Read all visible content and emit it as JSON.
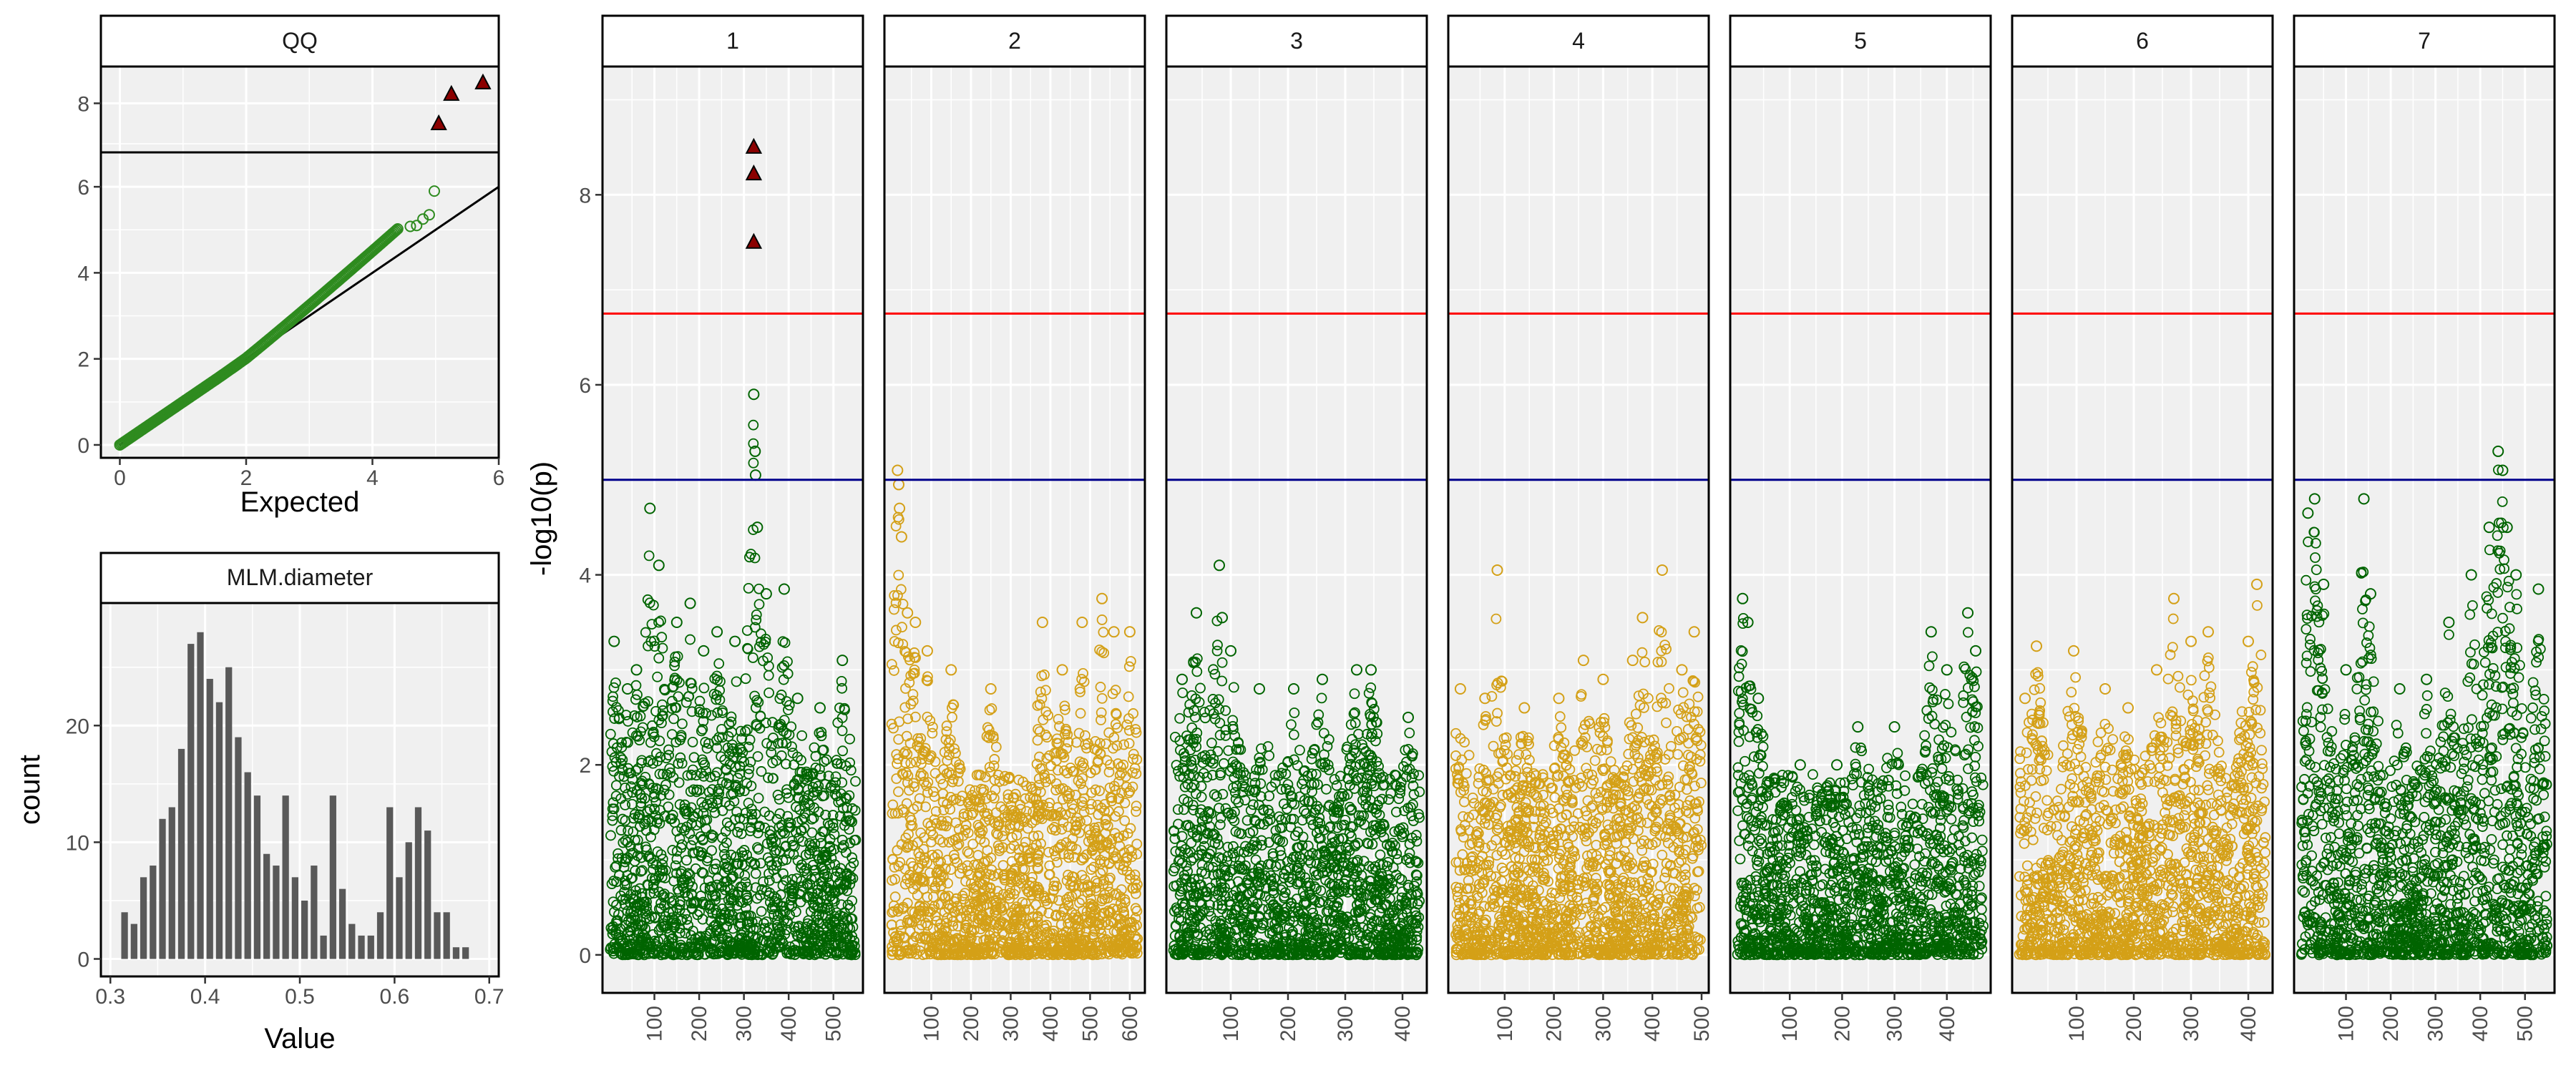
{
  "chart_data": [
    {
      "type": "scatter",
      "strip": "QQ",
      "xlabel": "Expected",
      "ylabel": "",
      "x_ticks": [
        0,
        2,
        4,
        6
      ],
      "upper_y_ticks": [
        8
      ],
      "lower_y_ticks": [
        0,
        2,
        4,
        6
      ],
      "upper_ylim": [
        6.8,
        8.9
      ],
      "lower_ylim": [
        -0.3,
        6.8
      ],
      "xlim": [
        -0.3,
        6.0
      ],
      "reference_line": [
        [
          0,
          0
        ],
        [
          6,
          6
        ]
      ],
      "significant_points": [
        [
          5.05,
          7.5
        ],
        [
          5.25,
          8.22
        ],
        [
          5.75,
          8.5
        ]
      ],
      "point_colors": {
        "significant": "#8b0000",
        "normal": "#2e8b1f"
      }
    },
    {
      "type": "bar",
      "strip": "MLM.diameter",
      "xlabel": "Value",
      "ylabel": "count",
      "x_ticks": [
        0.3,
        0.4,
        0.5,
        0.6,
        0.7
      ],
      "y_ticks": [
        0,
        10,
        20
      ],
      "xlim": [
        0.29,
        0.71
      ],
      "ylim": [
        -1.5,
        30.5
      ],
      "bin_width": 0.01,
      "bins": [
        0.315,
        0.325,
        0.335,
        0.345,
        0.355,
        0.365,
        0.375,
        0.385,
        0.395,
        0.405,
        0.415,
        0.425,
        0.435,
        0.445,
        0.455,
        0.465,
        0.475,
        0.485,
        0.495,
        0.505,
        0.515,
        0.525,
        0.535,
        0.545,
        0.555,
        0.565,
        0.575,
        0.585,
        0.595,
        0.605,
        0.615,
        0.625,
        0.635,
        0.645,
        0.655,
        0.665,
        0.675
      ],
      "values": [
        4,
        3,
        7,
        8,
        12,
        13,
        18,
        27,
        28,
        24,
        22,
        25,
        19,
        16,
        14,
        9,
        8,
        14,
        7,
        5,
        8,
        2,
        14,
        6,
        3,
        2,
        2,
        4,
        13,
        7,
        10,
        13,
        11,
        4,
        4,
        1,
        1
      ],
      "bar_color": "#595959"
    },
    {
      "type": "scatter",
      "ylabel": "-log10(p)",
      "y_ticks": [
        0,
        2,
        4,
        6,
        8
      ],
      "ylim": [
        -0.4,
        9.35
      ],
      "threshold_lines": [
        {
          "value": 6.75,
          "color": "#ff0000"
        },
        {
          "value": 5.0,
          "color": "#00008b"
        }
      ],
      "series_colors": {
        "odd": "#006400",
        "even": "#d4a017",
        "significant": "#8b0000"
      },
      "panels": [
        {
          "strip": "1",
          "xmax": 550,
          "x_ticks": [
            100,
            200,
            300,
            400,
            500
          ],
          "peaks": [
            [
              10,
              3.3
            ],
            [
              40,
              2.8
            ],
            [
              60,
              3.0
            ],
            [
              90,
              4.7
            ],
            [
              110,
              4.1
            ],
            [
              150,
              3.5
            ],
            [
              180,
              3.7
            ],
            [
              210,
              3.2
            ],
            [
              240,
              3.4
            ],
            [
              280,
              3.3
            ],
            [
              322,
              5.9
            ],
            [
              325,
              5.3
            ],
            [
              326,
              5.05
            ],
            [
              330,
              4.5
            ],
            [
              350,
              3.8
            ],
            [
              390,
              3.85
            ],
            [
              420,
              2.7
            ],
            [
              470,
              2.6
            ],
            [
              520,
              3.1
            ]
          ],
          "significant": [
            [
              322,
              8.5
            ],
            [
              322,
              8.22
            ],
            [
              322,
              7.5
            ]
          ]
        },
        {
          "strip": "2",
          "xmax": 620,
          "x_ticks": [
            100,
            200,
            300,
            400,
            500,
            600
          ],
          "peaks": [
            [
              15,
              5.1
            ],
            [
              18,
              4.95
            ],
            [
              20,
              4.7
            ],
            [
              25,
              4.4
            ],
            [
              40,
              3.6
            ],
            [
              60,
              3.5
            ],
            [
              90,
              3.2
            ],
            [
              150,
              3.0
            ],
            [
              250,
              2.8
            ],
            [
              380,
              3.5
            ],
            [
              430,
              3.0
            ],
            [
              480,
              3.5
            ],
            [
              530,
              3.75
            ],
            [
              560,
              3.4
            ],
            [
              600,
              3.4
            ]
          ],
          "significant": []
        },
        {
          "strip": "3",
          "xmax": 430,
          "x_ticks": [
            100,
            200,
            300,
            400
          ],
          "peaks": [
            [
              15,
              2.9
            ],
            [
              40,
              3.6
            ],
            [
              80,
              4.1
            ],
            [
              85,
              3.55
            ],
            [
              100,
              3.2
            ],
            [
              150,
              2.8
            ],
            [
              210,
              2.8
            ],
            [
              260,
              2.9
            ],
            [
              320,
              3.0
            ],
            [
              345,
              3.0
            ],
            [
              410,
              2.5
            ]
          ],
          "significant": []
        },
        {
          "strip": "4",
          "xmax": 500,
          "x_ticks": [
            100,
            200,
            300,
            400,
            500
          ],
          "peaks": [
            [
              10,
              2.8
            ],
            [
              60,
              2.7
            ],
            [
              85,
              4.05
            ],
            [
              140,
              2.6
            ],
            [
              210,
              2.7
            ],
            [
              260,
              3.1
            ],
            [
              300,
              2.9
            ],
            [
              360,
              3.1
            ],
            [
              380,
              3.55
            ],
            [
              420,
              4.05
            ],
            [
              460,
              3.0
            ],
            [
              485,
              3.4
            ]
          ],
          "significant": []
        },
        {
          "strip": "5",
          "xmax": 470,
          "x_ticks": [
            100,
            200,
            300,
            400
          ],
          "peaks": [
            [
              10,
              3.75
            ],
            [
              20,
              3.5
            ],
            [
              40,
              2.7
            ],
            [
              120,
              2.0
            ],
            [
              190,
              2.0
            ],
            [
              230,
              2.4
            ],
            [
              300,
              2.4
            ],
            [
              370,
              3.4
            ],
            [
              400,
              3.0
            ],
            [
              440,
              3.6
            ],
            [
              455,
              3.2
            ]
          ],
          "significant": []
        },
        {
          "strip": "6",
          "xmax": 430,
          "x_ticks": [
            100,
            200,
            300,
            400
          ],
          "peaks": [
            [
              10,
              2.7
            ],
            [
              30,
              3.25
            ],
            [
              95,
              3.2
            ],
            [
              150,
              2.8
            ],
            [
              190,
              2.6
            ],
            [
              240,
              3.0
            ],
            [
              270,
              3.75
            ],
            [
              300,
              3.3
            ],
            [
              330,
              3.4
            ],
            [
              400,
              3.3
            ],
            [
              415,
              3.9
            ]
          ],
          "significant": []
        },
        {
          "strip": "7",
          "xmax": 550,
          "x_ticks": [
            100,
            200,
            300,
            400,
            500
          ],
          "peaks": [
            [
              15,
              4.65
            ],
            [
              30,
              4.8
            ],
            [
              50,
              3.9
            ],
            [
              100,
              3.0
            ],
            [
              140,
              4.8
            ],
            [
              155,
              3.8
            ],
            [
              220,
              2.8
            ],
            [
              280,
              2.9
            ],
            [
              330,
              3.5
            ],
            [
              380,
              4.0
            ],
            [
              420,
              4.5
            ],
            [
              440,
              5.3
            ],
            [
              450,
              5.1
            ],
            [
              460,
              4.5
            ],
            [
              480,
              4.0
            ],
            [
              530,
              3.85
            ]
          ],
          "significant": []
        }
      ]
    }
  ]
}
